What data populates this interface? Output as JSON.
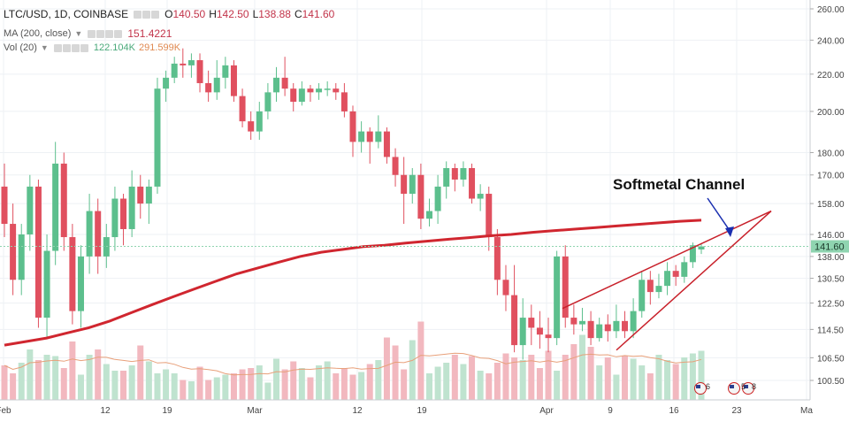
{
  "header": {
    "symbol": "LTC/USD, 1D, COINBASE",
    "ohlc": [
      {
        "k": "O",
        "v": "140.50"
      },
      {
        "k": "H",
        "v": "142.50"
      },
      {
        "k": "L",
        "v": "138.88"
      },
      {
        "k": "C",
        "v": "141.60"
      }
    ],
    "ma_label": "MA (200, close)",
    "ma_value": "151.4221",
    "vol_label": "Vol (20)",
    "vol_value": "122.104K",
    "vol_ma_value": "291.599K"
  },
  "colors": {
    "up": "#5cbf8d",
    "down": "#e0505f",
    "ma": "#d0262f",
    "channel": "#c8202a",
    "arrow": "#1a2fb0",
    "vol_up": "#bfe3cf",
    "vol_down": "#f2b8bf",
    "vol_ma": "#e8a07a",
    "price_tag": "#8fd4b0",
    "grid": "#eef1f4"
  },
  "chart_data": {
    "type": "candlestick",
    "y_scale": "log",
    "ylim": [
      96,
      268
    ],
    "y_ticks": [
      "260.00",
      "240.00",
      "220.00",
      "200.00",
      "180.00",
      "170.00",
      "158.00",
      "146.00",
      "138.00",
      "130.50",
      "122.50",
      "114.50",
      "106.50",
      "100.50"
    ],
    "x_ticks": [
      "Feb",
      "12",
      "19",
      "Mar",
      "12",
      "19",
      "Apr",
      "9",
      "16",
      "23",
      "Ma"
    ],
    "last_price": "141.60",
    "annotation": "Softmetal Channel",
    "candles": [
      [
        165,
        150,
        175,
        145
      ],
      [
        150,
        130,
        158,
        125
      ],
      [
        130,
        146,
        150,
        125
      ],
      [
        146,
        165,
        170,
        140
      ],
      [
        165,
        118,
        168,
        115
      ],
      [
        118,
        140,
        146,
        112
      ],
      [
        140,
        175,
        185,
        135
      ],
      [
        175,
        145,
        180,
        140
      ],
      [
        145,
        120,
        150,
        116
      ],
      [
        120,
        138,
        142,
        115
      ],
      [
        138,
        155,
        162,
        132
      ],
      [
        155,
        138,
        160,
        132
      ],
      [
        138,
        145,
        150,
        134
      ],
      [
        145,
        160,
        165,
        140
      ],
      [
        160,
        148,
        162,
        142
      ],
      [
        148,
        165,
        172,
        145
      ],
      [
        165,
        158,
        170,
        152
      ],
      [
        158,
        165,
        168,
        150
      ],
      [
        165,
        212,
        218,
        162
      ],
      [
        212,
        218,
        222,
        205
      ],
      [
        218,
        226,
        230,
        215
      ],
      [
        226,
        225,
        235,
        218
      ],
      [
        225,
        228,
        232,
        218
      ],
      [
        228,
        215,
        232,
        210
      ],
      [
        215,
        210,
        222,
        205
      ],
      [
        210,
        218,
        228,
        206
      ],
      [
        218,
        225,
        230,
        212
      ],
      [
        225,
        208,
        228,
        205
      ],
      [
        208,
        195,
        212,
        192
      ],
      [
        195,
        190,
        200,
        186
      ],
      [
        190,
        200,
        205,
        186
      ],
      [
        200,
        210,
        215,
        196
      ],
      [
        210,
        218,
        224,
        205
      ],
      [
        218,
        212,
        230,
        208
      ],
      [
        212,
        205,
        215,
        200
      ],
      [
        205,
        212,
        216,
        203
      ],
      [
        212,
        210,
        214,
        205
      ],
      [
        210,
        212,
        215,
        206
      ],
      [
        212,
        212,
        216,
        208
      ],
      [
        212,
        210,
        215,
        206
      ],
      [
        210,
        200,
        215,
        197
      ],
      [
        200,
        185,
        203,
        178
      ],
      [
        185,
        190,
        195,
        180
      ],
      [
        190,
        185,
        192,
        175
      ],
      [
        185,
        190,
        198,
        182
      ],
      [
        190,
        178,
        192,
        175
      ],
      [
        178,
        170,
        182,
        165
      ],
      [
        170,
        162,
        178,
        150
      ],
      [
        162,
        170,
        173,
        158
      ],
      [
        170,
        152,
        175,
        148
      ],
      [
        152,
        155,
        160,
        149
      ],
      [
        155,
        165,
        170,
        150
      ],
      [
        165,
        173,
        176,
        160
      ],
      [
        173,
        168,
        175,
        163
      ],
      [
        168,
        173,
        176,
        165
      ],
      [
        173,
        160,
        175,
        158
      ],
      [
        160,
        162,
        166,
        155
      ],
      [
        162,
        145,
        165,
        140
      ],
      [
        145,
        130,
        148,
        125
      ],
      [
        130,
        125,
        135,
        120
      ],
      [
        125,
        110,
        135,
        108
      ],
      [
        110,
        118,
        124,
        106
      ],
      [
        118,
        115,
        122,
        110
      ],
      [
        115,
        113,
        120,
        109
      ],
      [
        113,
        112,
        118,
        108
      ],
      [
        112,
        138,
        140,
        110
      ],
      [
        138,
        118,
        142,
        115
      ],
      [
        118,
        116,
        122,
        113
      ],
      [
        116,
        117,
        121,
        114
      ],
      [
        117,
        112,
        120,
        110
      ],
      [
        112,
        116,
        118,
        111
      ],
      [
        116,
        114,
        119,
        111
      ],
      [
        114,
        117,
        122,
        112
      ],
      [
        117,
        114,
        120,
        112
      ],
      [
        114,
        120,
        124,
        112
      ],
      [
        120,
        130,
        133,
        118
      ],
      [
        130,
        126,
        133,
        122
      ],
      [
        126,
        128,
        132,
        124
      ],
      [
        128,
        133,
        136,
        125
      ],
      [
        133,
        131,
        135,
        128
      ],
      [
        131,
        136,
        138,
        129
      ],
      [
        136,
        142,
        143,
        134
      ],
      [
        140.5,
        141.6,
        142.5,
        138.88
      ]
    ],
    "moving_average_200": [
      110,
      111,
      112,
      113.5,
      115,
      117,
      119.5,
      122,
      124.5,
      127,
      129.5,
      132,
      134,
      136,
      138,
      139.5,
      140.5,
      141.5,
      142,
      142.8,
      143.5,
      144.2,
      144.8,
      145.5,
      146,
      146.8,
      147.4,
      148,
      148.6,
      149.2,
      149.8,
      150.4,
      151,
      151.42
    ],
    "volumes": [
      26,
      20,
      28,
      38,
      30,
      34,
      33,
      24,
      44,
      19,
      34,
      38,
      27,
      22,
      22,
      26,
      41,
      29,
      20,
      23,
      20,
      15,
      14,
      25,
      15,
      17,
      19,
      20,
      23,
      24,
      26,
      13,
      31,
      23,
      29,
      24,
      17,
      26,
      29,
      20,
      24,
      19,
      21,
      27,
      30,
      47,
      41,
      23,
      45,
      59,
      20,
      25,
      28,
      34,
      27,
      33,
      22,
      20,
      28,
      35,
      32,
      30,
      34,
      24,
      37,
      22,
      34,
      42,
      49,
      40,
      26,
      32,
      19,
      33,
      31,
      26,
      20,
      34,
      30,
      27,
      32,
      35,
      37
    ]
  }
}
